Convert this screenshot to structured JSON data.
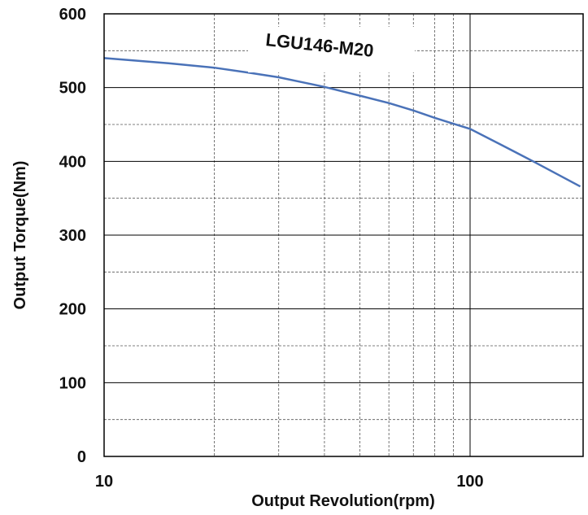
{
  "chart_data": {
    "type": "line",
    "title": "",
    "xlabel": "Output Revolution(rpm)",
    "ylabel": "Output Torque(Nm)",
    "xscale": "log",
    "xlim": [
      10,
      200
    ],
    "ylim": [
      0,
      600
    ],
    "x_ticks": [
      {
        "value": 10,
        "label": "10"
      },
      {
        "value": 100,
        "label": "100"
      }
    ],
    "y_ticks": [
      {
        "value": 0,
        "label": "0"
      },
      {
        "value": 100,
        "label": "100"
      },
      {
        "value": 200,
        "label": "200"
      },
      {
        "value": 300,
        "label": "300"
      },
      {
        "value": 400,
        "label": "400"
      },
      {
        "value": 500,
        "label": "500"
      },
      {
        "value": 600,
        "label": "600"
      }
    ],
    "grid": true,
    "line_color": "#4a72b8",
    "annotation": "LGU146-M20",
    "series": [
      {
        "x": [
          10,
          15,
          20,
          25,
          30,
          35,
          40,
          50,
          60,
          70,
          80,
          90,
          100,
          120,
          150,
          200
        ],
        "y": [
          540,
          533,
          527,
          520,
          514,
          507,
          501,
          489,
          479,
          469,
          459,
          451,
          444,
          424,
          399,
          366
        ]
      }
    ]
  }
}
